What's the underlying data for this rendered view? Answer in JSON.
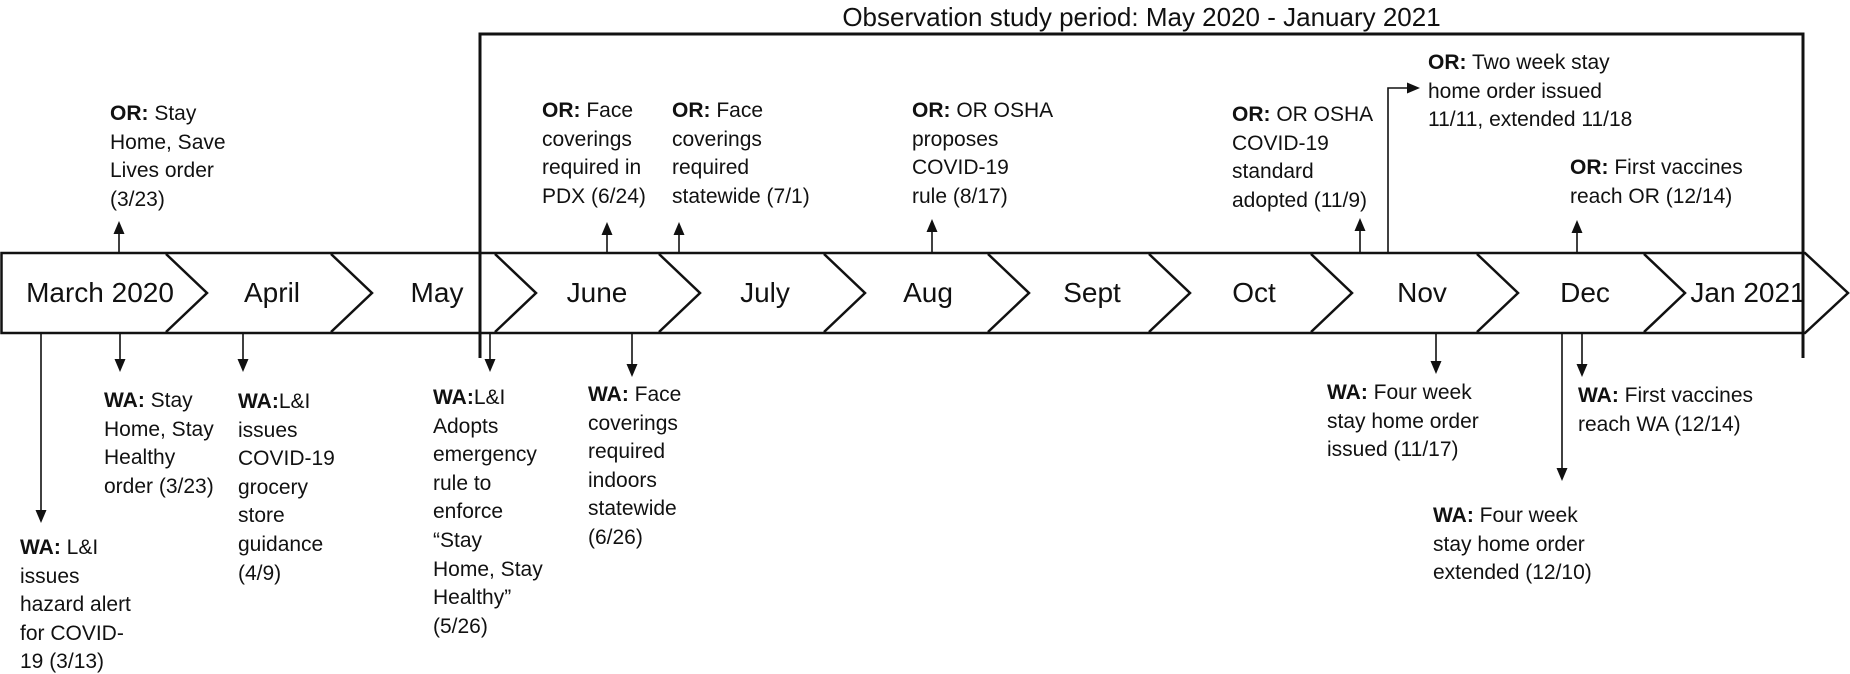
{
  "title": "Observation study period: May 2020 - January 2021",
  "timeline": {
    "months": [
      "March 2020",
      "April",
      "May",
      "June",
      "July",
      "Aug",
      "Sept",
      "Oct",
      "Nov",
      "Dec",
      "Jan 2021"
    ]
  },
  "events": [
    {
      "id": "or_stay_home",
      "side": "above",
      "state": "OR:",
      "lines": [
        " Stay",
        "Home, Save",
        "Lives order",
        "(3/23)"
      ]
    },
    {
      "id": "or_pdx",
      "side": "above",
      "state": "OR:",
      "lines": [
        " Face",
        "coverings",
        "required in",
        "PDX (6/24)"
      ]
    },
    {
      "id": "or_statewide",
      "side": "above",
      "state": "OR:",
      "lines": [
        " Face",
        "coverings",
        "required",
        "statewide (7/1)"
      ]
    },
    {
      "id": "or_osha_proposes",
      "side": "above",
      "state": "OR:",
      "lines": [
        " OR OSHA",
        "proposes",
        "COVID-19",
        "rule (8/17)"
      ]
    },
    {
      "id": "or_osha_adopted",
      "side": "above",
      "state": "OR:",
      "lines": [
        " OR OSHA",
        "COVID-19",
        "standard",
        "adopted (11/9)"
      ]
    },
    {
      "id": "or_two_week",
      "side": "above",
      "state": "OR:",
      "lines": [
        " Two week stay",
        "home order issued",
        "11/11, extended 11/18"
      ]
    },
    {
      "id": "or_vaccines",
      "side": "above",
      "state": "OR:",
      "lines": [
        " First vaccines",
        "reach OR (12/14)"
      ]
    },
    {
      "id": "wa_hazard",
      "side": "below",
      "state": "WA:",
      "lines": [
        " L&I",
        "issues",
        "hazard alert",
        "for COVID-",
        "19 (3/13)"
      ]
    },
    {
      "id": "wa_stay_home",
      "side": "below",
      "state": "WA:",
      "lines": [
        " Stay",
        "Home, Stay",
        "Healthy",
        "order (3/23)"
      ]
    },
    {
      "id": "wa_grocery",
      "side": "below",
      "state": "WA:",
      "lines": [
        "L&I",
        "issues",
        "COVID-19",
        "grocery",
        "store",
        "guidance",
        "(4/9)"
      ]
    },
    {
      "id": "wa_adopts",
      "side": "below",
      "state": "WA:",
      "lines": [
        "L&I",
        "Adopts",
        "emergency",
        "rule to",
        "enforce",
        "“Stay",
        "Home, Stay",
        "Healthy”",
        "(5/26)"
      ]
    },
    {
      "id": "wa_face",
      "side": "below",
      "state": "WA:",
      "lines": [
        " Face",
        "coverings",
        "required",
        "indoors",
        "statewide",
        "(6/26)"
      ]
    },
    {
      "id": "wa_issued",
      "side": "below",
      "state": "WA:",
      "lines": [
        " Four week",
        "stay home order",
        "issued (11/17)"
      ]
    },
    {
      "id": "wa_extended",
      "side": "below",
      "state": "WA:",
      "lines": [
        " Four week",
        "stay home order",
        "extended (12/10)"
      ]
    },
    {
      "id": "wa_vaccines",
      "side": "below",
      "state": "WA:",
      "lines": [
        " First vaccines",
        "reach WA (12/14)"
      ]
    }
  ]
}
